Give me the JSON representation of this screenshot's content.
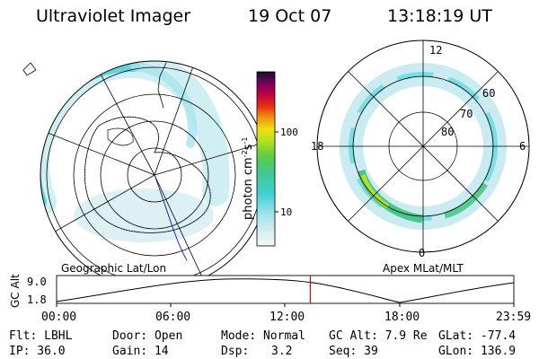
{
  "header": {
    "title": "Ultraviolet Imager",
    "date": "19 Oct 07",
    "time": "13:18:19 UT"
  },
  "left_panel": {
    "label": "Geographic Lat/Lon"
  },
  "right_panel": {
    "label": "Apex MLat/MLT",
    "mlt_labels": {
      "top": "12",
      "left": "18",
      "right": "6",
      "bottom": "0"
    },
    "lat_labels": [
      "60",
      "70",
      "80"
    ]
  },
  "colorbar": {
    "unit": "photon cm-2s-1",
    "unit_base": "photon cm",
    "unit_sup1": "-2",
    "unit_mid": "s",
    "unit_sup2": "-1",
    "ticks": [
      "100",
      "10"
    ]
  },
  "timeline": {
    "ylabel": "GC Alt",
    "ymax": "9.0",
    "ymin": "1.8",
    "ticks": [
      "00:00",
      "06:00",
      "12:00",
      "18:00",
      "23:59"
    ],
    "current_time_fraction": 0.555
  },
  "status": {
    "flt": "Flt: LBHL",
    "ip": "IP: 36.0",
    "door": "Door: Open",
    "gain": "Gain: 14",
    "mode": "Mode: Normal",
    "dsp_label": "Dsp:",
    "dsp_value": "3.2",
    "gc_alt": "GC Alt: 7.9 Re",
    "seq": "Seq: 39",
    "glat": "GLat: -77.4",
    "glon": "GLon: 136.9"
  },
  "colors": {
    "aurora_low": "#6fd8e0",
    "aurora_mid": "#44c888",
    "aurora_high": "#a8e030",
    "marker": "#e00000"
  }
}
